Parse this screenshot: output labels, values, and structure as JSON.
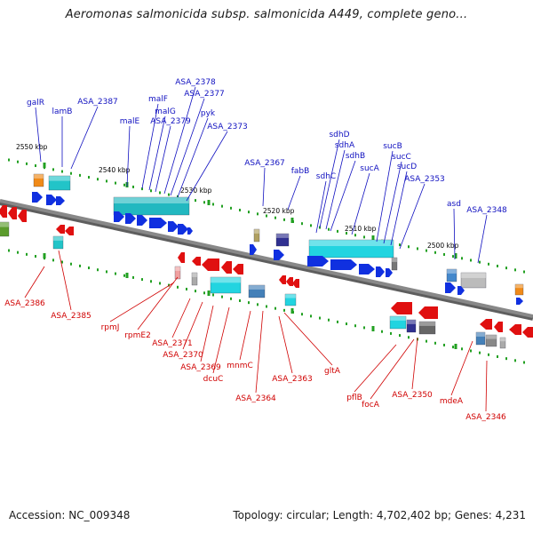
{
  "title": "Aeromonas salmonicida subsp. salmonicida A449, complete geno...",
  "accession_text": "Accession: NC_009348",
  "topology_text": "Topology: circular; Length: 4,702,402 bp; Genes: 4,231",
  "colors": {
    "forward_label": "#1010c0",
    "reverse_label": "#d00000",
    "forward_arrow": "#1030e0",
    "reverse_arrow": "#e01010",
    "backbone": "#888888",
    "tick": "#22a022"
  },
  "kbp_labels": [
    "2550 kbp",
    "2540 kbp",
    "2530 kbp",
    "2520 kbp",
    "2510 kbp",
    "2500 kbp"
  ],
  "forward_genes": [
    "galR",
    "lamB",
    "ASA_2387",
    "malE",
    "malF",
    "malG",
    "ASA_2378",
    "ASA_2377",
    "ASA_2379",
    "pyk",
    "ASA_2373",
    "ASA_2367",
    "fabB",
    "sdhD",
    "sdhA",
    "sdhC",
    "sdhB",
    "sucA",
    "sucB",
    "sucC",
    "sucD",
    "ASA_2353",
    "asd",
    "ASA_2348"
  ],
  "reverse_genes": [
    "ASA_2386",
    "ASA_2385",
    "rpmJ",
    "rpmE2",
    "ASA_2371",
    "ASA_2370",
    "ASA_2369",
    "dcuC",
    "mnmC",
    "ASA_2364",
    "ASA_2363",
    "gltA",
    "pflB",
    "focA",
    "ASA_2350",
    "mdeA",
    "ASA_2346"
  ]
}
